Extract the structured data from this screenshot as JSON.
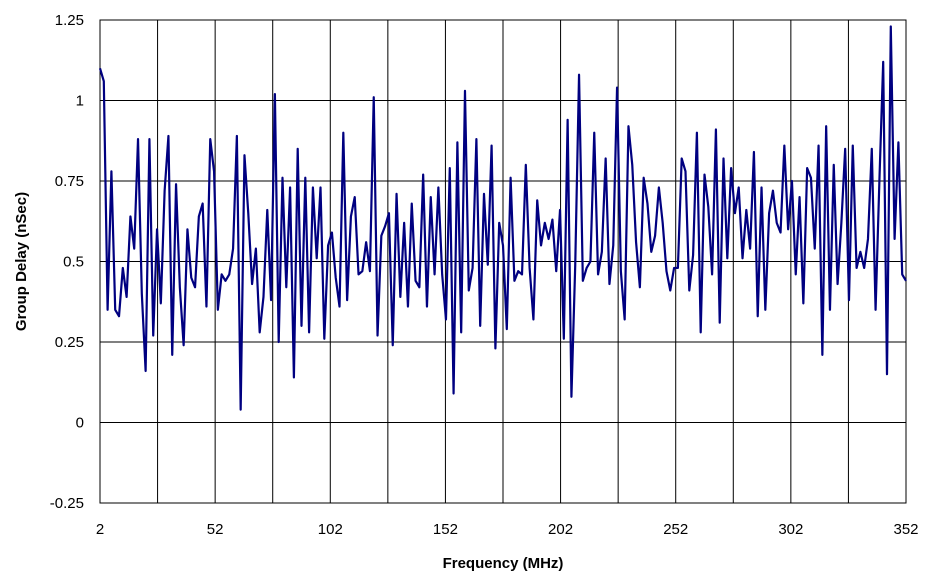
{
  "chart_data": {
    "type": "line",
    "title": "",
    "xlabel": "Frequency (MHz)",
    "ylabel": "Group Delay (nSec)",
    "xlim": [
      2,
      352
    ],
    "ylim": [
      -0.25,
      1.25
    ],
    "x_ticks": [
      2,
      52,
      102,
      152,
      202,
      252,
      302,
      352
    ],
    "y_ticks": [
      -0.25,
      0,
      0.25,
      0.5,
      0.75,
      1,
      1.25
    ],
    "x_tick_labels": [
      "2",
      "52",
      "102",
      "152",
      "202",
      "252",
      "302",
      "352"
    ],
    "y_tick_labels": [
      "-0.25",
      "0",
      "0.25",
      "0.5",
      "0.75",
      "1",
      "1.25"
    ],
    "grid": true,
    "legend": "none",
    "series": [
      {
        "color": "#000080",
        "points": [
          [
            2,
            1.1
          ],
          [
            3,
            1.06
          ],
          [
            4,
            0.35
          ],
          [
            5,
            0.78
          ],
          [
            6,
            0.35
          ],
          [
            7,
            0.33
          ],
          [
            8,
            0.48
          ],
          [
            9,
            0.39
          ],
          [
            10,
            0.64
          ],
          [
            11,
            0.54
          ],
          [
            12,
            0.88
          ],
          [
            13,
            0.4
          ],
          [
            14,
            0.16
          ],
          [
            15,
            0.88
          ],
          [
            16,
            0.27
          ],
          [
            17,
            0.6
          ],
          [
            18,
            0.37
          ],
          [
            19,
            0.72
          ],
          [
            20,
            0.89
          ],
          [
            21,
            0.21
          ],
          [
            22,
            0.74
          ],
          [
            23,
            0.42
          ],
          [
            24,
            0.24
          ],
          [
            25,
            0.6
          ],
          [
            26,
            0.45
          ],
          [
            27,
            0.42
          ],
          [
            28,
            0.64
          ],
          [
            29,
            0.68
          ],
          [
            30,
            0.36
          ],
          [
            31,
            0.88
          ],
          [
            32,
            0.78
          ],
          [
            33,
            0.35
          ],
          [
            34,
            0.46
          ],
          [
            35,
            0.44
          ],
          [
            36,
            0.46
          ],
          [
            37,
            0.54
          ],
          [
            38,
            0.89
          ],
          [
            39,
            0.04
          ],
          [
            40,
            0.83
          ],
          [
            41,
            0.65
          ],
          [
            42,
            0.43
          ],
          [
            43,
            0.54
          ],
          [
            44,
            0.28
          ],
          [
            45,
            0.39
          ],
          [
            46,
            0.66
          ],
          [
            47,
            0.38
          ],
          [
            48,
            1.02
          ],
          [
            49,
            0.25
          ],
          [
            50,
            0.76
          ],
          [
            51,
            0.42
          ],
          [
            52,
            0.73
          ],
          [
            53,
            0.14
          ],
          [
            54,
            0.85
          ],
          [
            55,
            0.3
          ],
          [
            56,
            0.76
          ],
          [
            57,
            0.28
          ],
          [
            58,
            0.73
          ],
          [
            59,
            0.51
          ],
          [
            60,
            0.73
          ],
          [
            61,
            0.26
          ],
          [
            62,
            0.55
          ],
          [
            63,
            0.59
          ],
          [
            64,
            0.45
          ],
          [
            65,
            0.36
          ],
          [
            66,
            0.9
          ],
          [
            67,
            0.38
          ],
          [
            68,
            0.64
          ],
          [
            69,
            0.7
          ],
          [
            70,
            0.46
          ],
          [
            71,
            0.47
          ],
          [
            72,
            0.56
          ],
          [
            73,
            0.47
          ],
          [
            74,
            1.01
          ],
          [
            75,
            0.27
          ],
          [
            76,
            0.58
          ],
          [
            77,
            0.61
          ],
          [
            78,
            0.65
          ],
          [
            79,
            0.24
          ],
          [
            80,
            0.71
          ],
          [
            81,
            0.39
          ],
          [
            82,
            0.62
          ],
          [
            83,
            0.36
          ],
          [
            84,
            0.68
          ],
          [
            85,
            0.44
          ],
          [
            86,
            0.42
          ],
          [
            87,
            0.77
          ],
          [
            88,
            0.36
          ],
          [
            89,
            0.7
          ],
          [
            90,
            0.46
          ],
          [
            91,
            0.73
          ],
          [
            92,
            0.46
          ],
          [
            93,
            0.32
          ],
          [
            94,
            0.79
          ],
          [
            95,
            0.09
          ],
          [
            96,
            0.87
          ],
          [
            97,
            0.28
          ],
          [
            98,
            1.03
          ],
          [
            99,
            0.41
          ],
          [
            100,
            0.48
          ],
          [
            101,
            0.88
          ],
          [
            102,
            0.3
          ],
          [
            103,
            0.71
          ],
          [
            104,
            0.49
          ],
          [
            105,
            0.86
          ],
          [
            106,
            0.23
          ],
          [
            107,
            0.62
          ],
          [
            108,
            0.55
          ],
          [
            109,
            0.29
          ],
          [
            110,
            0.76
          ],
          [
            111,
            0.44
          ],
          [
            112,
            0.47
          ],
          [
            113,
            0.46
          ],
          [
            114,
            0.8
          ],
          [
            115,
            0.48
          ],
          [
            116,
            0.32
          ],
          [
            117,
            0.69
          ],
          [
            118,
            0.55
          ],
          [
            119,
            0.62
          ],
          [
            120,
            0.57
          ],
          [
            121,
            0.63
          ],
          [
            122,
            0.47
          ],
          [
            123,
            0.66
          ],
          [
            124,
            0.26
          ],
          [
            125,
            0.94
          ],
          [
            126,
            0.08
          ],
          [
            127,
            0.49
          ],
          [
            128,
            1.08
          ],
          [
            129,
            0.44
          ],
          [
            130,
            0.48
          ],
          [
            131,
            0.5
          ],
          [
            132,
            0.9
          ],
          [
            133,
            0.46
          ],
          [
            134,
            0.53
          ],
          [
            135,
            0.82
          ],
          [
            136,
            0.43
          ],
          [
            137,
            0.55
          ],
          [
            138,
            1.04
          ],
          [
            139,
            0.47
          ],
          [
            140,
            0.32
          ],
          [
            141,
            0.92
          ],
          [
            142,
            0.8
          ],
          [
            143,
            0.56
          ],
          [
            144,
            0.42
          ],
          [
            145,
            0.76
          ],
          [
            146,
            0.68
          ],
          [
            147,
            0.53
          ],
          [
            148,
            0.58
          ],
          [
            149,
            0.73
          ],
          [
            150,
            0.62
          ],
          [
            151,
            0.47
          ],
          [
            152,
            0.41
          ],
          [
            153,
            0.48
          ],
          [
            154,
            0.48
          ],
          [
            155,
            0.82
          ],
          [
            156,
            0.78
          ],
          [
            157,
            0.41
          ],
          [
            158,
            0.52
          ],
          [
            159,
            0.9
          ],
          [
            160,
            0.28
          ],
          [
            161,
            0.77
          ],
          [
            162,
            0.67
          ],
          [
            163,
            0.46
          ],
          [
            164,
            0.91
          ],
          [
            165,
            0.31
          ],
          [
            166,
            0.82
          ],
          [
            167,
            0.51
          ],
          [
            168,
            0.79
          ],
          [
            169,
            0.65
          ],
          [
            170,
            0.73
          ],
          [
            171,
            0.51
          ],
          [
            172,
            0.66
          ],
          [
            173,
            0.54
          ],
          [
            174,
            0.84
          ],
          [
            175,
            0.33
          ],
          [
            176,
            0.73
          ],
          [
            177,
            0.35
          ],
          [
            178,
            0.65
          ],
          [
            179,
            0.72
          ],
          [
            180,
            0.62
          ],
          [
            181,
            0.59
          ],
          [
            182,
            0.86
          ],
          [
            183,
            0.6
          ],
          [
            184,
            0.75
          ],
          [
            185,
            0.46
          ],
          [
            186,
            0.7
          ],
          [
            187,
            0.37
          ],
          [
            188,
            0.79
          ],
          [
            189,
            0.76
          ],
          [
            190,
            0.54
          ],
          [
            191,
            0.86
          ],
          [
            192,
            0.21
          ],
          [
            193,
            0.92
          ],
          [
            194,
            0.35
          ],
          [
            195,
            0.8
          ],
          [
            196,
            0.43
          ],
          [
            197,
            0.62
          ],
          [
            198,
            0.85
          ],
          [
            199,
            0.38
          ],
          [
            200,
            0.86
          ],
          [
            201,
            0.48
          ],
          [
            202,
            0.53
          ],
          [
            203,
            0.48
          ],
          [
            204,
            0.57
          ],
          [
            205,
            0.85
          ],
          [
            206,
            0.35
          ],
          [
            207,
            0.75
          ],
          [
            208,
            1.12
          ],
          [
            209,
            0.15
          ],
          [
            210,
            1.23
          ],
          [
            211,
            0.57
          ],
          [
            212,
            0.87
          ],
          [
            213,
            0.46
          ],
          [
            214,
            0.44
          ]
        ]
      }
    ]
  }
}
